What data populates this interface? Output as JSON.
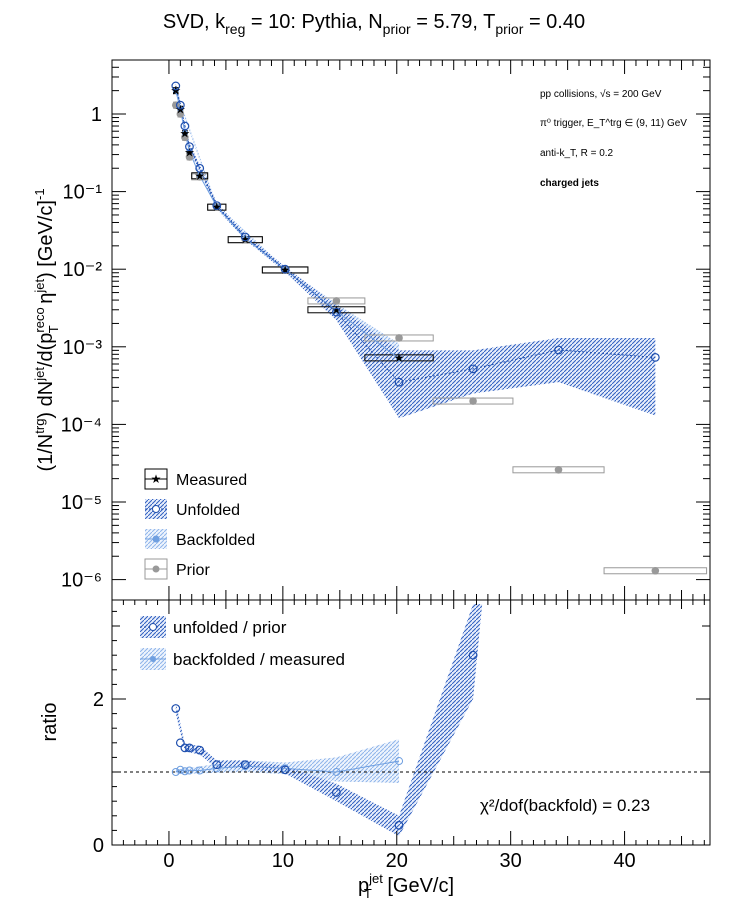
{
  "title": {
    "p1": "SVD, k",
    "s1": "reg",
    "p2": " = 10: Pythia, N",
    "s2": "prior",
    "p3": " = 5.79, T",
    "s3": "prior",
    "p4": " = 0.40"
  },
  "annotations": {
    "line1": "pp collisions, √s = 200 GeV",
    "line2": "π⁰ trigger, E_T^trg ∈ (9, 11) GeV",
    "line3": "anti-k_T, R = 0.2",
    "line4": "charged jets"
  },
  "chi2": "χ²/dof(backfold) = 0.23",
  "colors": {
    "measured": "#000000",
    "unfolded": "#1f4fae",
    "backfolded": "#6f9fe0",
    "prior": "#999999",
    "band_unfolded": "#2f5fc0",
    "band_backfolded": "#8fb4ea"
  },
  "chart_data": [
    {
      "type": "scatter",
      "panel": "top",
      "title": "SVD, k_reg = 10: Pythia, N_prior = 5.79, T_prior = 0.40",
      "xlabel": "p_T^jet [GeV/c]",
      "ylabel": "(1/N^trg) dN^jet/d(p_T^reco η^jet) [GeV/c]^-1",
      "xlim": [
        -5,
        47.5
      ],
      "ylim": [
        6e-07,
        4
      ],
      "yscale": "log",
      "yticks": [
        "10⁻⁶",
        "10⁻⁵",
        "10⁻⁴",
        "10⁻³",
        "10⁻²",
        "10⁻¹",
        "1"
      ],
      "legend": [
        "Measured",
        "Unfolded",
        "Backfolded",
        "Prior"
      ],
      "legend_position": "bottom-left",
      "series": [
        {
          "name": "Measured",
          "x": [
            0.6,
            1.0,
            1.4,
            1.8,
            2.7,
            4.2,
            6.7,
            10.2,
            14.7,
            20.2
          ],
          "xerr": [
            0.2,
            0.2,
            0.2,
            0.2,
            0.7,
            0.8,
            1.5,
            2.0,
            2.5,
            3.0
          ],
          "y": [
            2.0,
            1.15,
            0.56,
            0.32,
            0.16,
            0.063,
            0.024,
            0.0098,
            0.003,
            0.00072
          ]
        },
        {
          "name": "Unfolded",
          "x": [
            0.6,
            1.0,
            1.4,
            1.8,
            2.7,
            4.2,
            6.7,
            10.2,
            14.7,
            20.2,
            26.7,
            34.2,
            42.7
          ],
          "y": [
            2.3,
            1.3,
            0.7,
            0.38,
            0.2,
            0.066,
            0.026,
            0.01,
            0.0028,
            0.00035,
            0.00052,
            0.00091,
            0.00073
          ],
          "band": [
            [
              0.6,
              2.1,
              2.5
            ],
            [
              1.0,
              1.2,
              1.45
            ],
            [
              1.4,
              0.62,
              0.76
            ],
            [
              1.8,
              0.34,
              0.42
            ],
            [
              2.7,
              0.18,
              0.22
            ],
            [
              4.2,
              0.06,
              0.072
            ],
            [
              6.7,
              0.024,
              0.028
            ],
            [
              10.2,
              0.0092,
              0.0108
            ],
            [
              14.7,
              0.0022,
              0.0034
            ],
            [
              20.2,
              0.00012,
              0.0009
            ],
            [
              26.7,
              0.00025,
              0.0009
            ],
            [
              34.2,
              0.00035,
              0.0013
            ],
            [
              42.7,
              0.00013,
              0.0013
            ]
          ]
        },
        {
          "name": "Backfolded",
          "x": [
            0.6,
            1.0,
            1.4,
            1.8,
            2.7,
            4.2,
            6.7,
            10.2,
            14.7,
            20.2
          ],
          "y": [
            2.0,
            1.15,
            0.57,
            0.33,
            0.16,
            0.064,
            0.025,
            0.0099,
            0.0029,
            0.0007
          ],
          "band": [
            [
              0.6,
              1.9,
              2.1
            ],
            [
              4.2,
              0.06,
              0.068
            ],
            [
              10.2,
              0.0094,
              0.0104
            ],
            [
              14.7,
              0.0024,
              0.0036
            ],
            [
              20.2,
              0.00045,
              0.0011
            ]
          ]
        },
        {
          "name": "Prior",
          "x": [
            0.6,
            1.0,
            1.4,
            1.8,
            2.7,
            4.2,
            6.7,
            10.2,
            14.7,
            20.2,
            26.7,
            34.2,
            42.7
          ],
          "xerr": [
            0.2,
            0.2,
            0.2,
            0.2,
            0.7,
            0.8,
            1.5,
            2.0,
            2.5,
            3.0,
            3.5,
            4.0,
            4.5
          ],
          "y": [
            1.3,
            1.0,
            0.5,
            0.28,
            0.155,
            0.063,
            0.024,
            0.0097,
            0.0039,
            0.0013,
            0.0002,
            2.6e-05,
            1.3e-06
          ]
        }
      ]
    },
    {
      "type": "scatter",
      "panel": "bottom",
      "xlabel": "p_T^jet [GeV/c]",
      "ylabel": "ratio",
      "xlim": [
        -5,
        47.5
      ],
      "ylim": [
        0,
        3.3
      ],
      "xticks": [
        0,
        10,
        20,
        30,
        40
      ],
      "yticks": [
        0,
        2
      ],
      "reference_line": 1,
      "legend": [
        "unfolded / prior",
        "backfolded / measured"
      ],
      "legend_position": "top-left",
      "series": [
        {
          "name": "unfolded / prior",
          "x": [
            0.6,
            1.0,
            1.4,
            1.8,
            2.7,
            4.2,
            6.7,
            10.2,
            14.7,
            20.2,
            26.7
          ],
          "y": [
            1.87,
            1.4,
            1.33,
            1.33,
            1.3,
            1.1,
            1.1,
            1.03,
            0.72,
            0.27,
            2.6
          ],
          "band": [
            [
              0.6,
              1.8,
              1.95
            ],
            [
              1.4,
              1.28,
              1.38
            ],
            [
              2.7,
              1.24,
              1.36
            ],
            [
              4.2,
              1.05,
              1.16
            ],
            [
              6.7,
              1.05,
              1.16
            ],
            [
              10.2,
              0.98,
              1.08
            ],
            [
              14.7,
              0.6,
              0.84
            ],
            [
              20.2,
              0.12,
              0.4
            ],
            [
              26.7,
              2.0,
              3.3
            ],
            [
              27.5,
              3.3,
              3.3
            ]
          ]
        },
        {
          "name": "backfolded / measured",
          "x": [
            0.6,
            1.0,
            1.4,
            1.8,
            2.7,
            4.2,
            6.7,
            10.2,
            14.7,
            20.2
          ],
          "y": [
            1.0,
            1.03,
            1.01,
            1.02,
            1.02,
            1.05,
            1.08,
            1.05,
            1.0,
            1.15
          ],
          "band": [
            [
              0.6,
              0.97,
              1.03
            ],
            [
              4.2,
              0.99,
              1.11
            ],
            [
              6.7,
              1.0,
              1.16
            ],
            [
              10.2,
              0.97,
              1.13
            ],
            [
              14.7,
              0.87,
              1.2
            ],
            [
              20.2,
              0.85,
              1.45
            ]
          ]
        }
      ]
    }
  ]
}
